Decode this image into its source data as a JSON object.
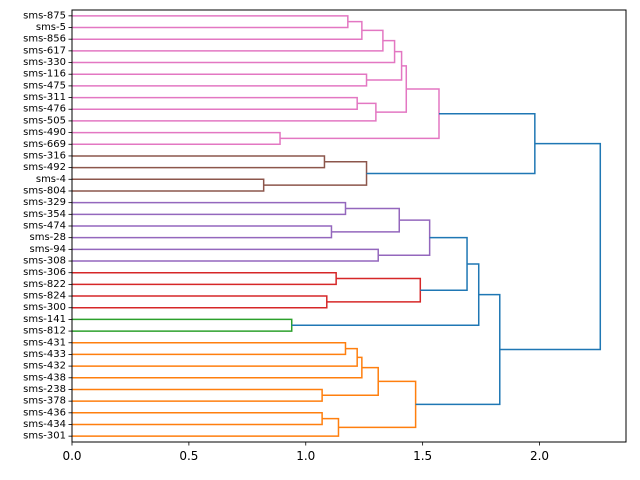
{
  "chart_data": {
    "type": "dendrogram",
    "orientation": "left",
    "title": "",
    "xlabel": "",
    "ylabel": "",
    "xlim": [
      0,
      2.37
    ],
    "x_ticks": [
      0.0,
      0.5,
      1.0,
      1.5,
      2.0
    ],
    "x_tick_labels": [
      "0.0",
      "0.5",
      "1.0",
      "1.5",
      "2.0"
    ],
    "leaves": [
      "sms-875",
      "sms-5",
      "sms-856",
      "sms-617",
      "sms-330",
      "sms-116",
      "sms-475",
      "sms-311",
      "sms-476",
      "sms-505",
      "sms-490",
      "sms-669",
      "sms-316",
      "sms-492",
      "sms-4",
      "sms-804",
      "sms-329",
      "sms-354",
      "sms-474",
      "sms-28",
      "sms-94",
      "sms-308",
      "sms-306",
      "sms-822",
      "sms-824",
      "sms-300",
      "sms-141",
      "sms-812",
      "sms-431",
      "sms-433",
      "sms-432",
      "sms-438",
      "sms-238",
      "sms-378",
      "sms-436",
      "sms-434",
      "sms-301"
    ],
    "colors": {
      "pink": "#e377c2",
      "brown": "#8c564b",
      "purple": "#9467bd",
      "red": "#d62728",
      "green": "#2ca02c",
      "orange": "#ff7f0e",
      "blue": "#1f77b4"
    },
    "merges": [
      {
        "a": "sms-875",
        "b": "sms-5",
        "h": 1.18,
        "color": "pink"
      },
      {
        "a": "m0",
        "b": "sms-856",
        "h": 1.24,
        "color": "pink"
      },
      {
        "a": "m1",
        "b": "sms-617",
        "h": 1.33,
        "color": "pink"
      },
      {
        "a": "m2",
        "b": "sms-330",
        "h": 1.38,
        "color": "pink"
      },
      {
        "a": "sms-116",
        "b": "sms-475",
        "h": 1.26,
        "color": "pink"
      },
      {
        "a": "m3",
        "b": "m4",
        "h": 1.41,
        "color": "pink"
      },
      {
        "a": "sms-311",
        "b": "sms-476",
        "h": 1.22,
        "color": "pink"
      },
      {
        "a": "m6",
        "b": "sms-505",
        "h": 1.3,
        "color": "pink"
      },
      {
        "a": "m5",
        "b": "m7",
        "h": 1.43,
        "color": "pink"
      },
      {
        "a": "sms-490",
        "b": "sms-669",
        "h": 0.89,
        "color": "pink"
      },
      {
        "a": "m8",
        "b": "m9",
        "h": 1.57,
        "color": "pink"
      },
      {
        "a": "sms-316",
        "b": "sms-492",
        "h": 1.08,
        "color": "brown"
      },
      {
        "a": "sms-4",
        "b": "sms-804",
        "h": 0.82,
        "color": "brown"
      },
      {
        "a": "m11",
        "b": "m12",
        "h": 1.26,
        "color": "brown"
      },
      {
        "a": "m10",
        "b": "m13",
        "h": 1.98,
        "color": "blue"
      },
      {
        "a": "sms-329",
        "b": "sms-354",
        "h": 1.17,
        "color": "purple"
      },
      {
        "a": "sms-474",
        "b": "sms-28",
        "h": 1.11,
        "color": "purple"
      },
      {
        "a": "m15",
        "b": "m16",
        "h": 1.4,
        "color": "purple"
      },
      {
        "a": "sms-94",
        "b": "sms-308",
        "h": 1.31,
        "color": "purple"
      },
      {
        "a": "m17",
        "b": "m18",
        "h": 1.53,
        "color": "purple"
      },
      {
        "a": "sms-306",
        "b": "sms-822",
        "h": 1.13,
        "color": "red"
      },
      {
        "a": "sms-824",
        "b": "sms-300",
        "h": 1.09,
        "color": "red"
      },
      {
        "a": "m20",
        "b": "m21",
        "h": 1.49,
        "color": "red"
      },
      {
        "a": "m19",
        "b": "m22",
        "h": 1.69,
        "color": "blue"
      },
      {
        "a": "sms-141",
        "b": "sms-812",
        "h": 0.94,
        "color": "green"
      },
      {
        "a": "m23",
        "b": "m24",
        "h": 1.74,
        "color": "blue"
      },
      {
        "a": "sms-431",
        "b": "sms-433",
        "h": 1.17,
        "color": "orange"
      },
      {
        "a": "m26",
        "b": "sms-432",
        "h": 1.22,
        "color": "orange"
      },
      {
        "a": "m27",
        "b": "sms-438",
        "h": 1.24,
        "color": "orange"
      },
      {
        "a": "sms-238",
        "b": "sms-378",
        "h": 1.07,
        "color": "orange"
      },
      {
        "a": "m28",
        "b": "m29",
        "h": 1.31,
        "color": "orange"
      },
      {
        "a": "sms-436",
        "b": "sms-434",
        "h": 1.07,
        "color": "orange"
      },
      {
        "a": "m31",
        "b": "sms-301",
        "h": 1.14,
        "color": "orange"
      },
      {
        "a": "m30",
        "b": "m32",
        "h": 1.47,
        "color": "orange"
      },
      {
        "a": "m25",
        "b": "m33",
        "h": 1.83,
        "color": "blue"
      },
      {
        "a": "m14",
        "b": "m34",
        "h": 2.26,
        "color": "blue"
      }
    ]
  }
}
